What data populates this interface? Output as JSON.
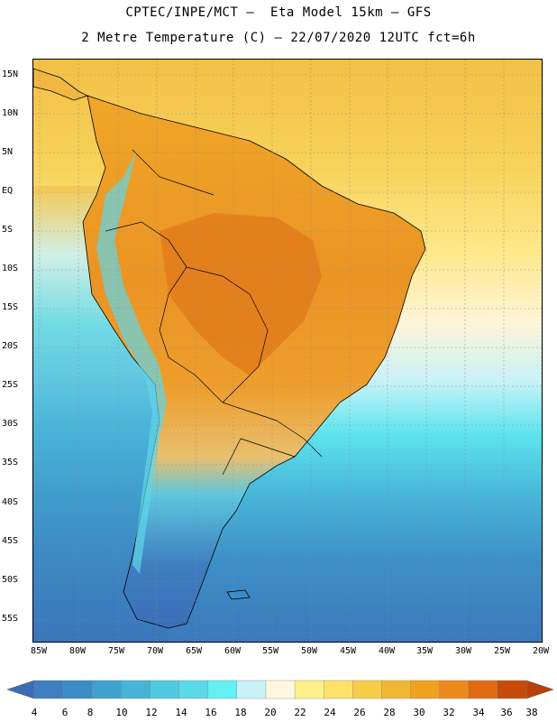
{
  "header": {
    "line1": "CPTEC/INPE/MCT –  Eta Model 15km – GFS",
    "line2": "2 Metre Temperature (C) – 22/07/2020 12UTC fct=6h"
  },
  "map": {
    "variable": "2 Metre Temperature",
    "units": "C",
    "lat_labels": [
      "15N",
      "10N",
      "5N",
      "EQ",
      "5S",
      "10S",
      "15S",
      "20S",
      "25S",
      "30S",
      "35S",
      "40S",
      "45S",
      "50S",
      "55S"
    ],
    "lon_labels": [
      "85W",
      "80W",
      "75W",
      "70W",
      "65W",
      "60W",
      "55W",
      "50W",
      "45W",
      "40W",
      "35W",
      "30W",
      "25W",
      "20W"
    ]
  },
  "colorbar": {
    "labels": [
      "4",
      "6",
      "8",
      "10",
      "12",
      "14",
      "16",
      "18",
      "20",
      "22",
      "24",
      "26",
      "28",
      "30",
      "32",
      "34",
      "36",
      "38"
    ],
    "colors": [
      "#3d7ec0",
      "#3a8bc6",
      "#3fa1cf",
      "#45b4d8",
      "#50c8e0",
      "#5ad9e8",
      "#62f0f4",
      "#c8f2f8",
      "#fff6e0",
      "#fef08a",
      "#fde26a",
      "#f7cc48",
      "#f0b832",
      "#f0a21e",
      "#ed8a1c",
      "#e06a12",
      "#c84a0a"
    ],
    "left_arrow_color": "#3a6fb5",
    "right_arrow_color": "#b8400a"
  }
}
